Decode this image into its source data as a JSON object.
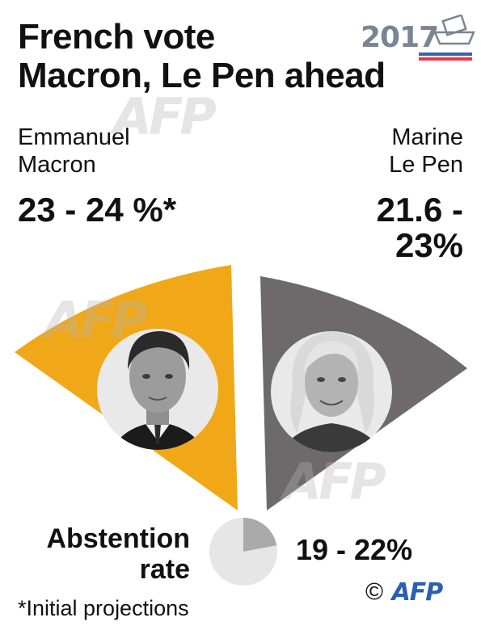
{
  "title": {
    "line1": "French vote",
    "line2": "Macron, Le Pen ahead"
  },
  "logo": {
    "year": "2017",
    "icon": "ballot-box-icon",
    "stripe_colors": [
      "#3b5fb6",
      "#e8394a"
    ]
  },
  "candidates": [
    {
      "first": "Emmanuel",
      "last": "Macron",
      "projection": "23 - 24 %*",
      "color": "#f0a818",
      "photo": "macron-portrait"
    },
    {
      "first": "Marine",
      "last": "Le Pen",
      "projection_line1": "21.6 -",
      "projection_line2": "23%",
      "color": "#6e6a6c",
      "photo": "le-pen-portrait"
    }
  ],
  "abstention": {
    "label_line1": "Abstention",
    "label_line2": "rate",
    "value": "19 - 22%",
    "share_low": 0.19,
    "share_high": 0.22
  },
  "footnote": "*Initial projections",
  "credit": {
    "copyright": "©",
    "agency": "AFP"
  },
  "colors": {
    "macron": "#f0a818",
    "lepen": "#6e6a6c",
    "pie_bg": "#e6e6e6",
    "pie_fill": "#aaaaaa"
  }
}
